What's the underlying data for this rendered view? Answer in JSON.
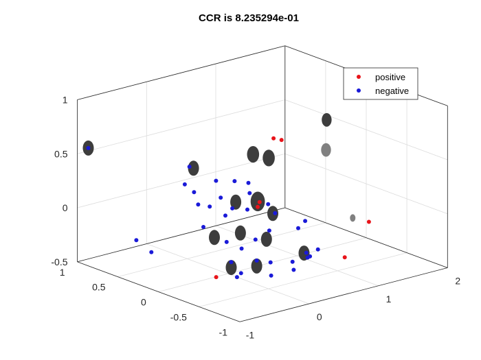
{
  "chart_data": {
    "type": "scatter",
    "title": "CCR is 8.235294e-01",
    "xlabel": "",
    "ylabel": "",
    "zlabel": "",
    "xlim": [
      -1,
      2
    ],
    "ylim": [
      -1,
      1
    ],
    "zlim": [
      -0.5,
      1
    ],
    "x_ticks": [
      "-1",
      "0",
      "1",
      "2"
    ],
    "y_ticks": [
      "-1",
      "-0.5",
      "0",
      "0.5",
      "1"
    ],
    "z_ticks": [
      "-0.5",
      "0",
      "0.5",
      "1"
    ],
    "grid": true,
    "legend": {
      "placement": "top-right",
      "entries": [
        "positive",
        "negative"
      ]
    },
    "colors": {
      "positive": "#e8141a",
      "negative": "#1a1ad8",
      "blob": "#3d3d3d",
      "blob_light": "#808080"
    },
    "series": [
      {
        "name": "positive",
        "points": [
          [
            0.72,
            0.05,
            0.62
          ],
          [
            0.8,
            0.02,
            0.6
          ],
          [
            0.55,
            0.1,
            0.0
          ],
          [
            0.6,
            0.12,
            0.03
          ],
          [
            -0.05,
            0.1,
            -0.55
          ],
          [
            1.1,
            -0.8,
            0.02
          ],
          [
            0.75,
            -0.8,
            -0.25
          ]
        ]
      },
      {
        "name": "negative",
        "points": [
          [
            -0.9,
            0.95,
            0.55
          ],
          [
            0.1,
            0.5,
            0.1
          ],
          [
            0.15,
            0.6,
            0.3
          ],
          [
            0.25,
            0.3,
            0.08
          ],
          [
            0.3,
            0.4,
            0.2
          ],
          [
            0.45,
            0.3,
            0.2
          ],
          [
            0.1,
            0.45,
            0.0
          ],
          [
            0.15,
            0.35,
            0.0
          ],
          [
            0.2,
            0.2,
            -0.05
          ],
          [
            0.3,
            0.2,
            0.0
          ],
          [
            0.4,
            0.1,
            0.0
          ],
          [
            0.55,
            0.2,
            0.1
          ],
          [
            0.65,
            0.3,
            0.15
          ],
          [
            0.7,
            0.1,
            0.0
          ],
          [
            0.4,
            0.0,
            -0.25
          ],
          [
            0.6,
            0.0,
            -0.2
          ],
          [
            0.8,
            0.1,
            -0.1
          ],
          [
            0.9,
            -0.1,
            -0.2
          ],
          [
            1.0,
            -0.1,
            -0.15
          ],
          [
            0.0,
            0.3,
            -0.15
          ],
          [
            0.1,
            0.1,
            -0.25
          ],
          [
            0.2,
            0.0,
            -0.3
          ],
          [
            0.3,
            -0.1,
            -0.4
          ],
          [
            0.5,
            -0.1,
            -0.45
          ],
          [
            0.7,
            -0.2,
            -0.45
          ],
          [
            0.9,
            -0.2,
            -0.4
          ],
          [
            -0.5,
            0.7,
            -0.3
          ],
          [
            -0.4,
            0.6,
            -0.4
          ],
          [
            0.05,
            0.0,
            -0.4
          ],
          [
            0.25,
            0.05,
            -0.55
          ],
          [
            0.25,
            0.1,
            -0.6
          ],
          [
            0.45,
            -0.15,
            -0.55
          ],
          [
            0.6,
            -0.3,
            -0.48
          ],
          [
            0.8,
            -0.3,
            -0.4
          ],
          [
            0.95,
            -0.3,
            -0.35
          ],
          [
            0.6,
            -0.5,
            -0.3
          ],
          [
            0.2,
            0.7,
            0.1
          ]
        ]
      }
    ],
    "blobs": [
      [
        -0.9,
        0.95,
        0.55,
        1.0,
        "dark"
      ],
      [
        0.15,
        0.55,
        0.3,
        1.0,
        "dark"
      ],
      [
        0.6,
        0.2,
        0.45,
        1.1,
        "dark"
      ],
      [
        0.65,
        0.05,
        0.45,
        1.1,
        "dark"
      ],
      [
        0.9,
        -0.45,
        0.9,
        0.9,
        "dark"
      ],
      [
        0.95,
        -0.4,
        0.6,
        0.9,
        "light"
      ],
      [
        0.55,
        0.1,
        0.05,
        1.3,
        "dark"
      ],
      [
        0.35,
        0.2,
        0.05,
        1.0,
        "dark"
      ],
      [
        0.65,
        0.0,
        -0.05,
        1.0,
        "dark"
      ],
      [
        0.1,
        0.25,
        -0.25,
        1.0,
        "dark"
      ],
      [
        0.3,
        0.1,
        -0.2,
        1.0,
        "dark"
      ],
      [
        0.5,
        -0.05,
        -0.25,
        1.0,
        "dark"
      ],
      [
        0.05,
        0.0,
        -0.45,
        1.0,
        "dark"
      ],
      [
        0.3,
        -0.1,
        -0.45,
        1.0,
        "dark"
      ],
      [
        0.75,
        -0.3,
        -0.35,
        1.0,
        "dark"
      ],
      [
        1.1,
        -0.6,
        0.0,
        0.5,
        "light"
      ]
    ]
  }
}
